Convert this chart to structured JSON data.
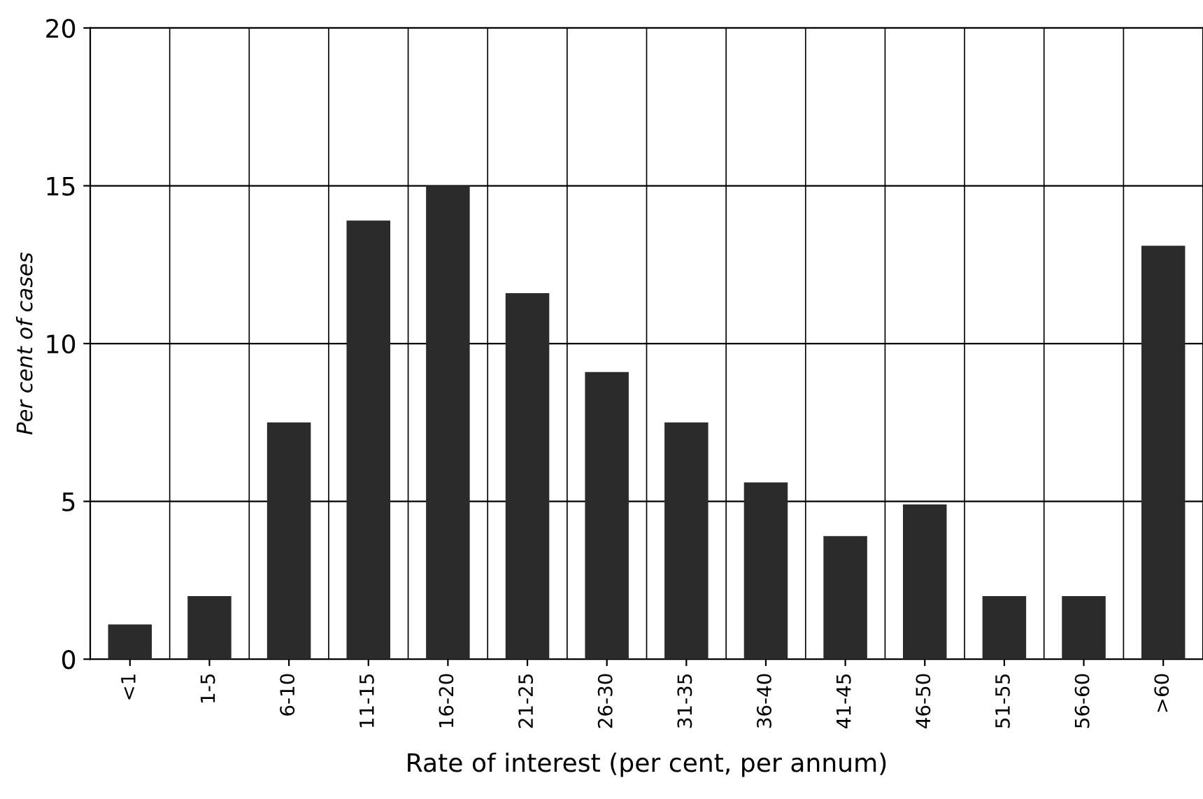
{
  "chart_data": {
    "type": "bar",
    "xlabel": "Rate of interest (per cent, per annum)",
    "ylabel": "Per cent of cases",
    "categories": [
      "<1",
      "1-5",
      "6-10",
      "11-15",
      "16-20",
      "21-25",
      "26-30",
      "31-35",
      "36-40",
      "41-45",
      "46-50",
      "51-55",
      "56-60",
      ">60"
    ],
    "values": [
      1.1,
      2.0,
      7.5,
      13.9,
      15.0,
      11.6,
      9.1,
      7.5,
      5.6,
      3.9,
      4.9,
      2.0,
      2.0,
      13.1
    ],
    "color": "#2b2b2b",
    "ylim": [
      0,
      20
    ],
    "yticks": [
      0,
      5,
      10,
      15,
      20
    ],
    "grid": true
  }
}
